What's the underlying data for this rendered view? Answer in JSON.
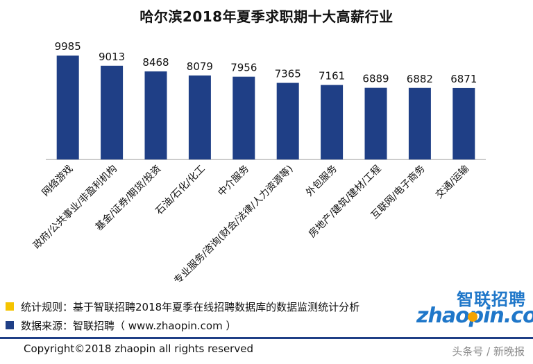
{
  "colors": {
    "bar": "#1f3f86",
    "title": "#111111",
    "legend_square_1": "#f5c400",
    "legend_square_2": "#1f3f86",
    "footer_rule": "#1f3f86",
    "logo_text": "#1f77c9",
    "logo_accent": "#f5a300"
  },
  "legend": [
    {
      "text": "统计规则：基于智联招聘2018年夏季在线招聘数据库的数据监测统计分析",
      "color": "#f5c400"
    },
    {
      "text": "数据来源：智联招聘（ www.zhaopin.com ）",
      "color": "#1f3f86"
    }
  ],
  "footer": {
    "copyright": "Copyright©2018 zhaopin all rights reserved",
    "watermark": "头条号 / 新晚报"
  },
  "logo": {
    "cn": "智联招聘",
    "word": "zhaopin.com"
  },
  "chart_data": {
    "type": "bar",
    "title": "哈尔滨2018年夏季求职期十大高薪行业",
    "categories": [
      "网络游戏",
      "政府/公共事业/非盈利机构",
      "基金/证券/期货/投资",
      "石油/石化/化工",
      "中介服务",
      "专业服务/咨询(财会/法律/人力资源等)",
      "外包服务",
      "房地产/建筑/建材/工程",
      "互联网/电子商务",
      "交通/运输"
    ],
    "values": [
      9985,
      9013,
      8468,
      8079,
      7956,
      7365,
      7161,
      6889,
      6882,
      6871
    ],
    "ylim": [
      0,
      10800
    ],
    "grid": false,
    "data_labels": true
  }
}
